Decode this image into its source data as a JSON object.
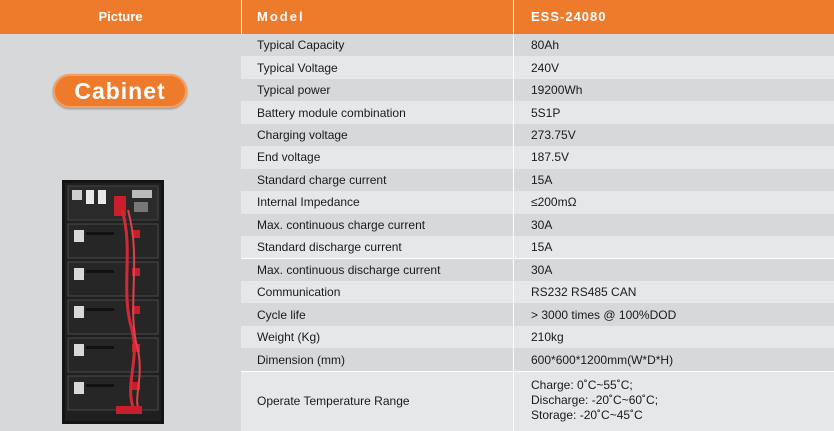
{
  "header": {
    "picture": "Picture",
    "model": "Model",
    "product": "ESS-24080"
  },
  "badge": "Cabinet",
  "rows": [
    {
      "label": "Typical Capacity",
      "value": "80Ah"
    },
    {
      "label": "Typical Voltage",
      "value": "240V"
    },
    {
      "label": "Typical power",
      "value": "19200Wh"
    },
    {
      "label": "Battery module combination",
      "value": "5S1P"
    },
    {
      "label": "Charging voltage",
      "value": "273.75V"
    },
    {
      "label": "End voltage",
      "value": "187.5V"
    },
    {
      "label": "Standard charge current",
      "value": "15A"
    },
    {
      "label": "Internal Impedance",
      "value": "≤200mΩ"
    },
    {
      "label": "Max. continuous charge current",
      "value": "30A"
    },
    {
      "label": "Standard discharge current",
      "value": "15A"
    },
    {
      "label": "Max. continuous discharge current",
      "value": "30A"
    },
    {
      "label": "Communication",
      "value": "RS232 RS485 CAN"
    },
    {
      "label": "Cycle life",
      "value": "> 3000 times @ 100%DOD"
    },
    {
      "label": "Weight (Kg)",
      "value": "210kg"
    },
    {
      "label": "Dimension (mm)",
      "value": "600*600*1200mm(W*D*H)"
    }
  ],
  "temperature": {
    "label": "Operate Temperature Range",
    "charge": "Charge: 0˚C~55˚C;",
    "discharge": "Discharge: -20˚C~60˚C;",
    "storage": "Storage: -20˚C~45˚C"
  },
  "colors": {
    "accent": "#ee7a2c",
    "row_even": "#d7d8da",
    "row_odd": "#e6e7e8"
  }
}
